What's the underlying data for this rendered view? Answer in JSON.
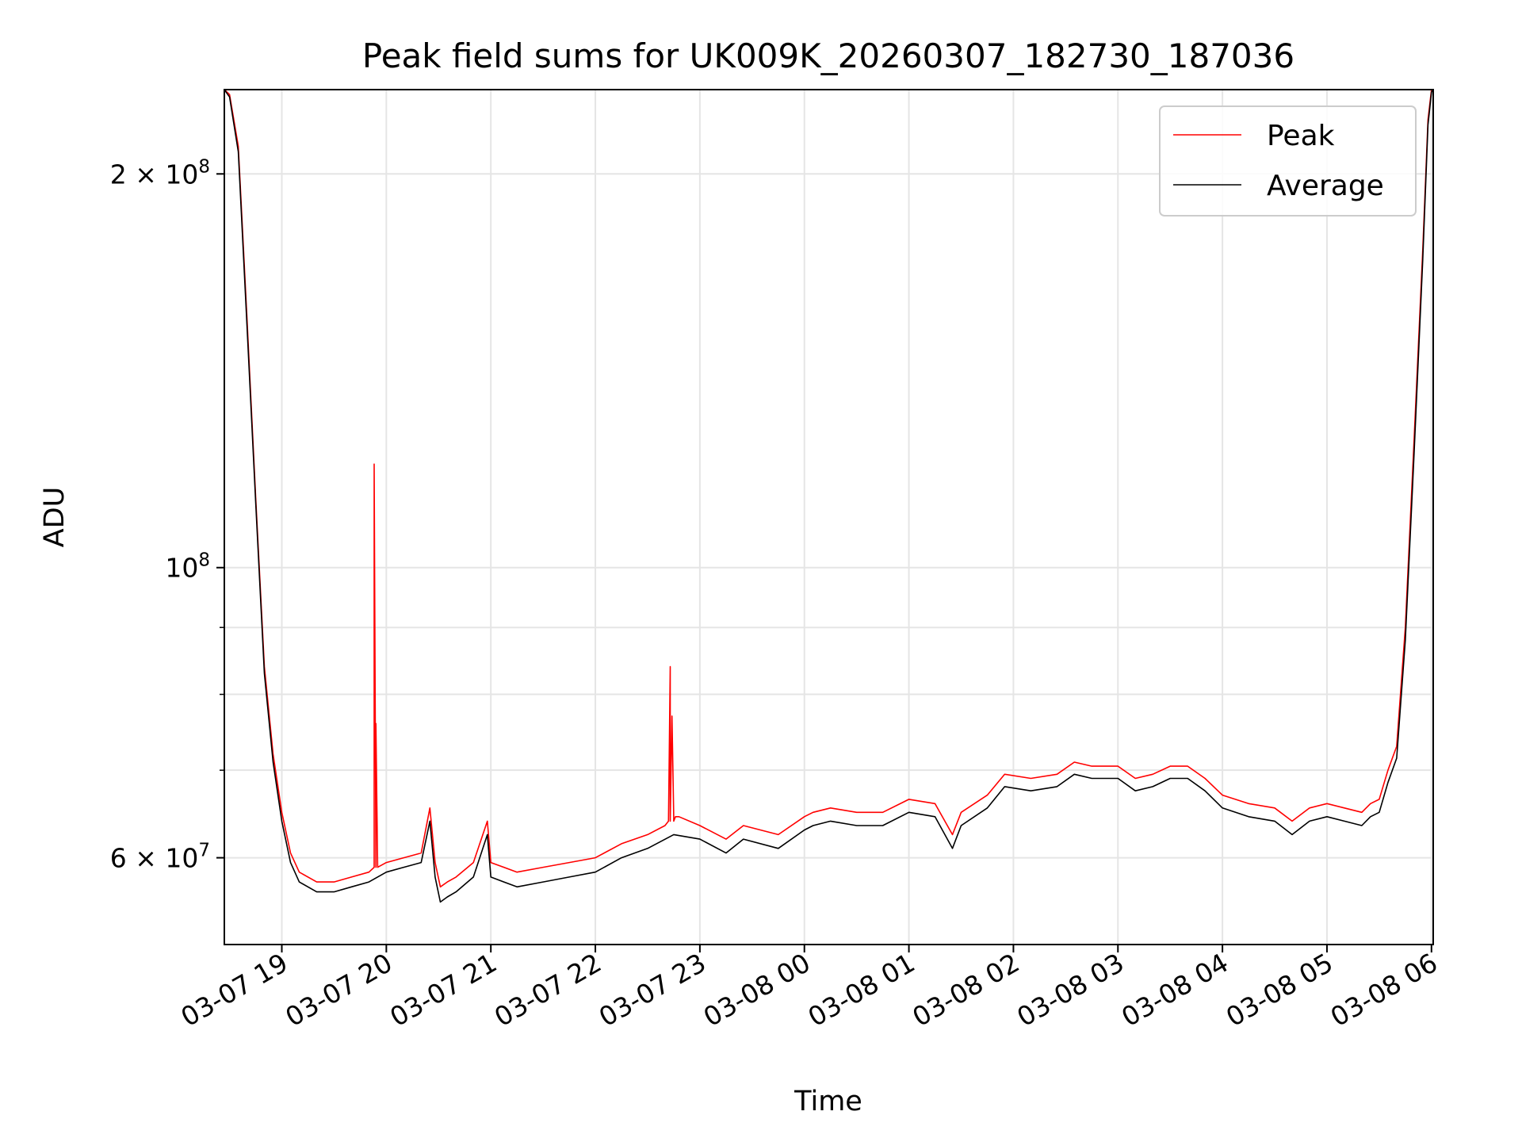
{
  "chart_data": {
    "type": "line",
    "title": "Peak field sums for UK009K_20260307_182730_187036",
    "xlabel": "Time",
    "ylabel": "ADU",
    "yscale": "log",
    "grid": true,
    "legend_position": "top-right",
    "xlim": [
      "2026-03-07 18:27",
      "2026-03-08 06:01"
    ],
    "ylim": [
      51500000,
      232000000
    ],
    "x_ticks": [
      {
        "value": "2026-03-07 19:00",
        "label": "03-07 19"
      },
      {
        "value": "2026-03-07 20:00",
        "label": "03-07 20"
      },
      {
        "value": "2026-03-07 21:00",
        "label": "03-07 21"
      },
      {
        "value": "2026-03-07 22:00",
        "label": "03-07 22"
      },
      {
        "value": "2026-03-07 23:00",
        "label": "03-07 23"
      },
      {
        "value": "2026-03-08 00:00",
        "label": "03-08 00"
      },
      {
        "value": "2026-03-08 01:00",
        "label": "03-08 01"
      },
      {
        "value": "2026-03-08 02:00",
        "label": "03-08 02"
      },
      {
        "value": "2026-03-08 03:00",
        "label": "03-08 03"
      },
      {
        "value": "2026-03-08 04:00",
        "label": "03-08 04"
      },
      {
        "value": "2026-03-08 05:00",
        "label": "03-08 05"
      },
      {
        "value": "2026-03-08 06:00",
        "label": "03-08 06"
      }
    ],
    "y_major_ticks": [
      {
        "value": 60000000,
        "mantissa": "6",
        "exponent": "7"
      },
      {
        "value": 100000000,
        "mantissa": "",
        "exponent": "8"
      },
      {
        "value": 200000000,
        "mantissa": "2",
        "exponent": "8"
      }
    ],
    "y_minor_ticks": [
      70000000,
      80000000,
      90000000
    ],
    "series": [
      {
        "name": "Peak",
        "color": "#ff0000",
        "x": [
          "2026-03-07 18:27",
          "2026-03-07 18:30",
          "2026-03-07 18:35",
          "2026-03-07 18:40",
          "2026-03-07 18:45",
          "2026-03-07 18:50",
          "2026-03-07 18:55",
          "2026-03-07 19:00",
          "2026-03-07 19:05",
          "2026-03-07 19:10",
          "2026-03-07 19:20",
          "2026-03-07 19:30",
          "2026-03-07 19:40",
          "2026-03-07 19:50",
          "2026-03-07 19:53",
          "2026-03-07 19:53",
          "2026-03-07 19:54",
          "2026-03-07 19:54",
          "2026-03-07 19:55",
          "2026-03-07 20:00",
          "2026-03-07 20:10",
          "2026-03-07 20:20",
          "2026-03-07 20:25",
          "2026-03-07 20:28",
          "2026-03-07 20:31",
          "2026-03-07 20:35",
          "2026-03-07 20:40",
          "2026-03-07 20:50",
          "2026-03-07 20:58",
          "2026-03-07 21:00",
          "2026-03-07 21:15",
          "2026-03-07 21:30",
          "2026-03-07 21:45",
          "2026-03-07 22:00",
          "2026-03-07 22:15",
          "2026-03-07 22:30",
          "2026-03-07 22:40",
          "2026-03-07 22:42",
          "2026-03-07 22:43",
          "2026-03-07 22:43",
          "2026-03-07 22:44",
          "2026-03-07 22:45",
          "2026-03-07 22:45",
          "2026-03-07 22:46",
          "2026-03-07 22:48",
          "2026-03-07 23:00",
          "2026-03-07 23:15",
          "2026-03-07 23:25",
          "2026-03-07 23:45",
          "2026-03-08 00:00",
          "2026-03-08 00:05",
          "2026-03-08 00:15",
          "2026-03-08 00:30",
          "2026-03-08 00:45",
          "2026-03-08 01:00",
          "2026-03-08 01:15",
          "2026-03-08 01:25",
          "2026-03-08 01:30",
          "2026-03-08 01:45",
          "2026-03-08 01:55",
          "2026-03-08 02:10",
          "2026-03-08 02:25",
          "2026-03-08 02:35",
          "2026-03-08 02:45",
          "2026-03-08 03:00",
          "2026-03-08 03:10",
          "2026-03-08 03:20",
          "2026-03-08 03:30",
          "2026-03-08 03:40",
          "2026-03-08 03:50",
          "2026-03-08 04:00",
          "2026-03-08 04:15",
          "2026-03-08 04:30",
          "2026-03-08 04:40",
          "2026-03-08 04:50",
          "2026-03-08 05:00",
          "2026-03-08 05:10",
          "2026-03-08 05:20",
          "2026-03-08 05:25",
          "2026-03-08 05:30",
          "2026-03-08 05:35",
          "2026-03-08 05:40",
          "2026-03-08 05:45",
          "2026-03-08 05:50",
          "2026-03-08 05:55",
          "2026-03-08 05:58",
          "2026-03-08 06:00",
          "2026-03-08 06:01"
        ],
        "y": [
          232000000,
          230000000,
          210000000,
          155000000,
          113000000,
          84000000,
          72000000,
          65000000,
          60500000,
          58500000,
          57500000,
          57500000,
          58000000,
          58500000,
          59000000,
          120000000,
          59000000,
          76000000,
          59000000,
          59500000,
          60000000,
          60500000,
          65500000,
          59500000,
          57000000,
          57500000,
          58000000,
          59500000,
          64000000,
          59500000,
          58500000,
          59000000,
          59500000,
          60000000,
          61500000,
          62500000,
          63500000,
          64000000,
          84000000,
          64000000,
          77000000,
          64500000,
          64000000,
          64500000,
          64500000,
          63500000,
          62000000,
          63500000,
          62500000,
          64500000,
          65000000,
          65500000,
          65000000,
          65000000,
          66500000,
          66000000,
          62500000,
          65000000,
          67000000,
          69500000,
          69000000,
          69500000,
          71000000,
          70500000,
          70500000,
          69000000,
          69500000,
          70500000,
          70500000,
          69000000,
          67000000,
          66000000,
          65500000,
          64000000,
          65500000,
          66000000,
          65500000,
          65000000,
          66000000,
          66500000,
          70000000,
          73000000,
          90000000,
          125000000,
          175000000,
          220000000,
          232000000,
          232000000
        ]
      },
      {
        "name": "Average",
        "color": "#000000",
        "x": [
          "2026-03-07 18:27",
          "2026-03-07 18:30",
          "2026-03-07 18:35",
          "2026-03-07 18:40",
          "2026-03-07 18:45",
          "2026-03-07 18:50",
          "2026-03-07 18:55",
          "2026-03-07 19:00",
          "2026-03-07 19:05",
          "2026-03-07 19:10",
          "2026-03-07 19:20",
          "2026-03-07 19:30",
          "2026-03-07 19:40",
          "2026-03-07 19:50",
          "2026-03-07 20:00",
          "2026-03-07 20:10",
          "2026-03-07 20:20",
          "2026-03-07 20:25",
          "2026-03-07 20:28",
          "2026-03-07 20:31",
          "2026-03-07 20:35",
          "2026-03-07 20:40",
          "2026-03-07 20:50",
          "2026-03-07 20:58",
          "2026-03-07 21:00",
          "2026-03-07 21:15",
          "2026-03-07 21:30",
          "2026-03-07 21:45",
          "2026-03-07 22:00",
          "2026-03-07 22:15",
          "2026-03-07 22:30",
          "2026-03-07 22:45",
          "2026-03-07 23:00",
          "2026-03-07 23:15",
          "2026-03-07 23:25",
          "2026-03-07 23:45",
          "2026-03-08 00:00",
          "2026-03-08 00:05",
          "2026-03-08 00:15",
          "2026-03-08 00:30",
          "2026-03-08 00:45",
          "2026-03-08 01:00",
          "2026-03-08 01:15",
          "2026-03-08 01:25",
          "2026-03-08 01:30",
          "2026-03-08 01:45",
          "2026-03-08 01:55",
          "2026-03-08 02:10",
          "2026-03-08 02:25",
          "2026-03-08 02:35",
          "2026-03-08 02:45",
          "2026-03-08 03:00",
          "2026-03-08 03:10",
          "2026-03-08 03:20",
          "2026-03-08 03:30",
          "2026-03-08 03:40",
          "2026-03-08 03:50",
          "2026-03-08 04:00",
          "2026-03-08 04:15",
          "2026-03-08 04:30",
          "2026-03-08 04:40",
          "2026-03-08 04:50",
          "2026-03-08 05:00",
          "2026-03-08 05:10",
          "2026-03-08 05:20",
          "2026-03-08 05:25",
          "2026-03-08 05:30",
          "2026-03-08 05:35",
          "2026-03-08 05:40",
          "2026-03-08 05:45",
          "2026-03-08 05:50",
          "2026-03-08 05:55",
          "2026-03-08 05:58",
          "2026-03-08 06:00",
          "2026-03-08 06:01"
        ],
        "y": [
          232000000,
          229000000,
          208000000,
          153000000,
          112000000,
          83000000,
          71000000,
          64000000,
          59500000,
          57500000,
          56500000,
          56500000,
          57000000,
          57500000,
          58500000,
          59000000,
          59500000,
          64000000,
          58000000,
          55500000,
          56000000,
          56500000,
          58000000,
          62500000,
          58000000,
          57000000,
          57500000,
          58000000,
          58500000,
          60000000,
          61000000,
          62500000,
          62000000,
          60500000,
          62000000,
          61000000,
          63000000,
          63500000,
          64000000,
          63500000,
          63500000,
          65000000,
          64500000,
          61000000,
          63500000,
          65500000,
          68000000,
          67500000,
          68000000,
          69500000,
          69000000,
          69000000,
          67500000,
          68000000,
          69000000,
          69000000,
          67500000,
          65500000,
          64500000,
          64000000,
          62500000,
          64000000,
          64500000,
          64000000,
          63500000,
          64500000,
          65000000,
          68500000,
          71500000,
          88000000,
          122000000,
          172000000,
          218000000,
          231000000,
          232000000
        ]
      }
    ]
  }
}
